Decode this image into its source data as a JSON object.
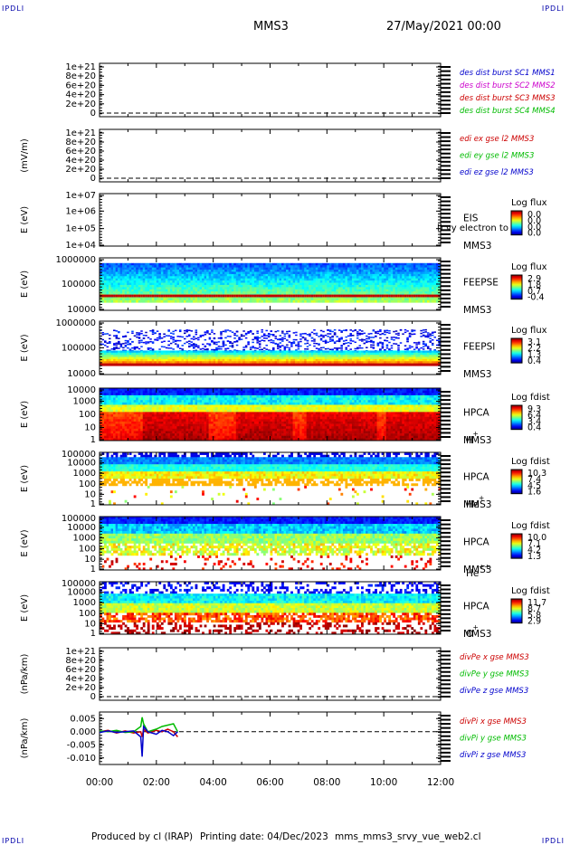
{
  "corner_label": "IPDLI",
  "header": {
    "spacecraft": "MMS3",
    "datetime": "27/May/2021 00:00"
  },
  "footer": {
    "produced": "Produced by cl (IRAP)",
    "printing": "Printing date: 04/Dec/2023",
    "file": "mms_mms3_srvy_vue_web2.cl"
  },
  "overlap_text": "l) vy electron to",
  "chart_data": [
    {
      "type": "line",
      "ylabel": "",
      "yticks": [
        "1e+21",
        "8e+20",
        "6e+20",
        "4e+20",
        "2e+20",
        "0"
      ],
      "ylim": [
        0,
        1.2e+21
      ],
      "grid": "dashed zero line",
      "legend": [
        {
          "name": "des dist burst SC1 MMS1",
          "color": "#0000cc"
        },
        {
          "name": "des dist burst SC2 MMS2",
          "color": "#cc00cc"
        },
        {
          "name": "des dist burst SC3 MMS3",
          "color": "#cc0000"
        },
        {
          "name": "des dist burst SC4 MMS4",
          "color": "#00bb00"
        }
      ]
    },
    {
      "type": "line",
      "ylabel": "(mV/m)",
      "yticks": [
        "1e+21",
        "8e+20",
        "6e+20",
        "4e+20",
        "2e+20",
        "0"
      ],
      "ylim": [
        0,
        1.2e+21
      ],
      "grid": "dashed zero line",
      "legend": [
        {
          "name": "edi ex gse l2 MMS3",
          "color": "#cc0000"
        },
        {
          "name": "edi ey gse l2 MMS3",
          "color": "#00bb00"
        },
        {
          "name": "edi ez gse l2 MMS3",
          "color": "#0000cc"
        }
      ]
    },
    {
      "type": "heatmap",
      "ylabel": "E (eV)",
      "yticks": [
        "1e+07",
        "1e+06",
        "1e+05",
        "1e+04"
      ],
      "instrument": [
        "EIS",
        "MMS3"
      ],
      "colorbar": {
        "title": "Log flux",
        "ticks": [
          "0.0",
          "0.0",
          "0.0",
          "0.0"
        ]
      },
      "fill": "empty"
    },
    {
      "type": "heatmap",
      "ylabel": "E (eV)",
      "yticks": [
        "1000000",
        "100000",
        "10000"
      ],
      "instrument": [
        "FEEPSE",
        "MMS3"
      ],
      "colorbar": {
        "title": "Log flux",
        "ticks": [
          "2.9",
          "1.8",
          "0.7",
          "-0.4"
        ]
      },
      "fill": "feeps"
    },
    {
      "type": "heatmap",
      "ylabel": "E (eV)",
      "yticks": [
        "1000000",
        "100000",
        "10000"
      ],
      "instrument": [
        "FEEPSI",
        "MMS3"
      ],
      "colorbar": {
        "title": "Log flux",
        "ticks": [
          "3.1",
          "2.2",
          "1.3",
          "0.4"
        ]
      },
      "fill": "feepsi"
    },
    {
      "type": "heatmap",
      "ylabel": "E (eV)",
      "yticks": [
        "10000",
        "1000",
        "100",
        "10",
        "1"
      ],
      "instrument": [
        "HPCA",
        "MMS3"
      ],
      "species": "H",
      "charge": "+",
      "colorbar": {
        "title": "Log fdist",
        "ticks": [
          "9.3",
          "6.4",
          "3.4",
          "0.4"
        ]
      },
      "fill": "hplus"
    },
    {
      "type": "heatmap",
      "ylabel": "E (eV)",
      "yticks": [
        "100000",
        "10000",
        "1000",
        "100",
        "10",
        "1"
      ],
      "instrument": [
        "HPCA",
        "MMS3"
      ],
      "species": "He",
      "charge": "+",
      "colorbar": {
        "title": "Log fdist",
        "ticks": [
          "10.3",
          "7.4",
          "4.5",
          "1.6"
        ]
      },
      "fill": "heplus"
    },
    {
      "type": "heatmap",
      "ylabel": "E (eV)",
      "yticks": [
        "100000",
        "10000",
        "1000",
        "100",
        "10",
        "1"
      ],
      "instrument": [
        "HPCA",
        "MMS3"
      ],
      "species": "He",
      "charge": "++",
      "colorbar": {
        "title": "Log fdist",
        "ticks": [
          "10.0",
          "7.1",
          "4.2",
          "1.3"
        ]
      },
      "fill": "hepp"
    },
    {
      "type": "heatmap",
      "ylabel": "E (eV)",
      "yticks": [
        "100000",
        "10000",
        "1000",
        "100",
        "10",
        "1"
      ],
      "instrument": [
        "HPCA",
        "MMS3"
      ],
      "species": "O",
      "charge": "+",
      "colorbar": {
        "title": "Log fdist",
        "ticks": [
          "11.7",
          "8.7",
          "5.8",
          "2.9"
        ]
      },
      "fill": "oplus"
    },
    {
      "type": "line",
      "ylabel": "(nPa/km)",
      "yticks": [
        "1e+21",
        "8e+20",
        "6e+20",
        "4e+20",
        "2e+20",
        "0"
      ],
      "ylim": [
        0,
        1.2e+21
      ],
      "grid": "dashed zero line",
      "legend": [
        {
          "name": "divPe x gse MMS3",
          "color": "#cc0000"
        },
        {
          "name": "divPe y gse MMS3",
          "color": "#00bb00"
        },
        {
          "name": "divPe z gse MMS3",
          "color": "#0000cc"
        }
      ]
    },
    {
      "type": "line",
      "ylabel": "(nPa/km)",
      "yticks": [
        "0.005",
        "0.000",
        "-0.005",
        "-0.010"
      ],
      "ylim": [
        -0.0125,
        0.0075
      ],
      "grid": "dashed zero line",
      "legend": [
        {
          "name": "divPi x gse MMS3",
          "color": "#cc0000"
        },
        {
          "name": "divPi y gse MMS3",
          "color": "#00bb00"
        },
        {
          "name": "divPi z gse MMS3",
          "color": "#0000cc"
        }
      ],
      "series": [
        {
          "name": "divPi x gse MMS3",
          "color": "#cc0000",
          "x": [
            0,
            0.3,
            0.6,
            0.9,
            1.2,
            1.45,
            1.5,
            1.55,
            1.7,
            2.0,
            2.2,
            2.4,
            2.6,
            2.75
          ],
          "y": [
            0.0,
            0.0005,
            -0.0005,
            0.0003,
            -0.0005,
            0.0,
            -0.002,
            0.001,
            -0.0005,
            0.0005,
            0.0,
            0.001,
            0.0,
            -0.002
          ]
        },
        {
          "name": "divPi y gse MMS3",
          "color": "#00bb00",
          "x": [
            0,
            0.3,
            0.6,
            0.9,
            1.2,
            1.45,
            1.5,
            1.55,
            1.7,
            2.0,
            2.2,
            2.4,
            2.6,
            2.75
          ],
          "y": [
            0.0003,
            0.0,
            0.0005,
            -0.0003,
            0.0,
            0.002,
            0.0055,
            0.003,
            0.0,
            0.001,
            0.002,
            0.0025,
            0.003,
            0.0
          ]
        },
        {
          "name": "divPi z gse MMS3",
          "color": "#0000cc",
          "x": [
            0,
            0.3,
            0.6,
            0.9,
            1.2,
            1.45,
            1.5,
            1.55,
            1.7,
            2.0,
            2.2,
            2.4,
            2.6,
            2.75
          ],
          "y": [
            -0.0003,
            0.0003,
            -0.0003,
            0.0,
            0.0003,
            -0.002,
            -0.0095,
            0.002,
            0.0,
            -0.001,
            0.0005,
            0.0,
            -0.0015,
            0.0
          ]
        }
      ]
    }
  ],
  "time_axis": {
    "ticks": [
      "00:00",
      "02:00",
      "04:00",
      "06:00",
      "08:00",
      "10:00",
      "12:00"
    ],
    "range_hours": [
      0,
      12
    ]
  }
}
